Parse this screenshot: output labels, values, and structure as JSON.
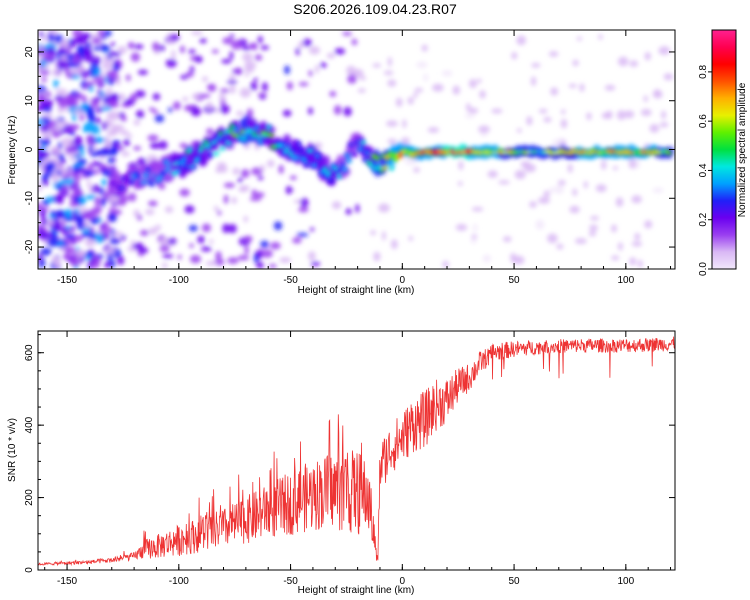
{
  "title": "S206.2026.109.04.23.R07",
  "chart_data": [
    {
      "type": "heatmap",
      "name": "spectrogram",
      "xlabel": "Height of straight line (km)",
      "ylabel": "Frequency (Hz)",
      "xlim": [
        -163,
        122
      ],
      "ylim": [
        -24.5,
        24.5
      ],
      "xticks": [
        -150,
        -100,
        -50,
        0,
        50,
        100
      ],
      "yticks": [
        -20,
        -10,
        0,
        10,
        20
      ],
      "colorbar": {
        "label": "Normalized spectral amplitude",
        "range": [
          0.0,
          0.97
        ],
        "ticks": [
          "0.0",
          "0.2",
          "0.4",
          "0.6",
          "0.8"
        ],
        "colors": [
          "#f2e8fb",
          "#d9b8f5",
          "#9a3ff0",
          "#6a00f0",
          "#2020f8",
          "#00a0ff",
          "#00e8e0",
          "#00e040",
          "#60f000",
          "#e8f000",
          "#ffb000",
          "#ff5000",
          "#ff0000",
          "#ff0050",
          "#ff2090"
        ]
      },
      "ridge": {
        "x": [
          -130,
          -120,
          -110,
          -100,
          -90,
          -80,
          -70,
          -60,
          -50,
          -40,
          -30,
          -25,
          -20,
          -15,
          -10,
          -5,
          0,
          5,
          10,
          20,
          30,
          40,
          50,
          60,
          70,
          80,
          90,
          100,
          110,
          120
        ],
        "freq": [
          -7,
          -6,
          -5,
          -3,
          -1,
          2,
          4,
          3,
          0,
          -2,
          -5,
          -3,
          2,
          -2,
          -3,
          -2,
          0,
          -1,
          -0.5,
          -0.5,
          -0.5,
          -0.5,
          -0.5,
          -0.5,
          -0.5,
          -0.5,
          -0.5,
          -0.5,
          -0.5,
          -0.5
        ],
        "amplitude": [
          0.25,
          0.3,
          0.35,
          0.4,
          0.45,
          0.5,
          0.55,
          0.5,
          0.45,
          0.4,
          0.4,
          0.35,
          0.35,
          0.5,
          0.65,
          0.7,
          0.8,
          0.7,
          0.8,
          0.85,
          0.85,
          0.75,
          0.6,
          0.55,
          0.6,
          0.7,
          0.75,
          0.8,
          0.75,
          0.6
        ]
      }
    },
    {
      "type": "line",
      "name": "snr",
      "xlabel": "Height of straight line (km)",
      "ylabel": "SNR (10 * v/v)",
      "xlim": [
        -163,
        122
      ],
      "ylim": [
        0,
        660
      ],
      "xticks": [
        -150,
        -100,
        -50,
        0,
        50,
        100
      ],
      "yticks": [
        0,
        200,
        400,
        600
      ],
      "color": "#ee3333",
      "x": [
        -163,
        -150,
        -140,
        -130,
        -120,
        -115,
        -110,
        -100,
        -90,
        -80,
        -70,
        -60,
        -50,
        -40,
        -30,
        -20,
        -15,
        -11,
        -10,
        -5,
        0,
        5,
        10,
        15,
        20,
        25,
        30,
        35,
        40,
        50,
        60,
        70,
        80,
        90,
        100,
        110,
        122
      ],
      "y": [
        15,
        18,
        20,
        25,
        35,
        50,
        55,
        70,
        85,
        100,
        120,
        140,
        160,
        180,
        190,
        180,
        170,
        20,
        300,
        350,
        380,
        420,
        430,
        470,
        480,
        520,
        540,
        580,
        600,
        610,
        615,
        618,
        620,
        620,
        620,
        622,
        625
      ],
      "noise": [
        3,
        4,
        5,
        6,
        10,
        25,
        30,
        40,
        45,
        50,
        60,
        70,
        80,
        90,
        100,
        110,
        90,
        10,
        90,
        90,
        90,
        100,
        100,
        90,
        80,
        60,
        50,
        40,
        30,
        25,
        22,
        22,
        22,
        22,
        22,
        22,
        22
      ]
    }
  ]
}
